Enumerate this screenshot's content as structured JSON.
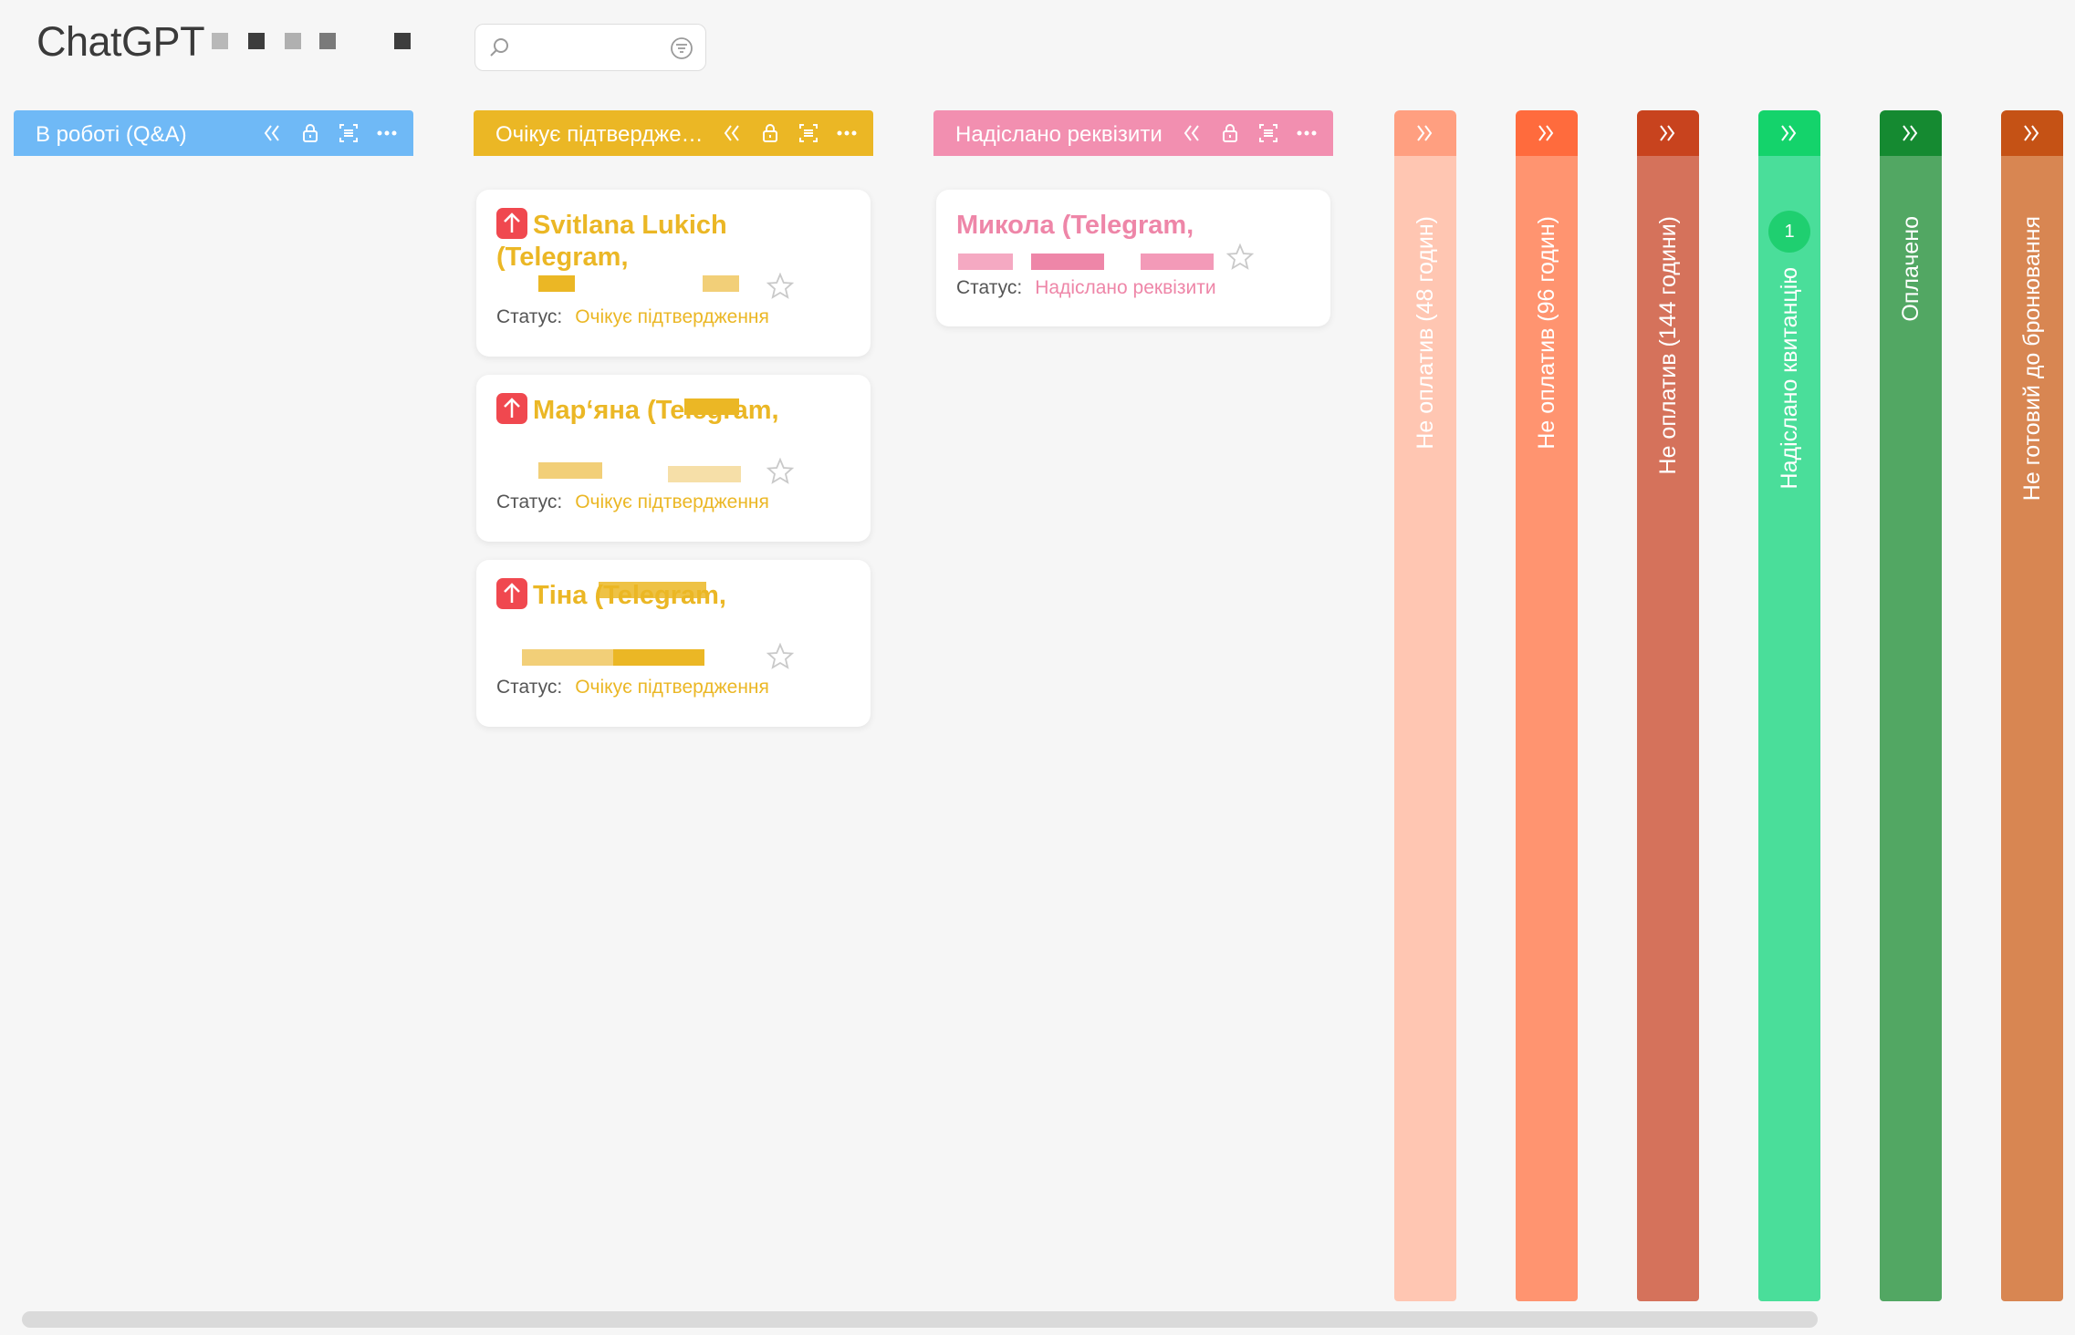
{
  "app": {
    "title": "ChatGPT"
  },
  "search": {
    "placeholder": ""
  },
  "columns": [
    {
      "label": "В роботі (Q&A)",
      "color": "#6fb9f6"
    },
    {
      "label": "Очікує підтвердження",
      "color": "#ebb725"
    },
    {
      "label": "Надіслано реквізити",
      "color": "#f28fb0"
    }
  ],
  "cards": [
    {
      "name": "Svitlana Lukich (Telegram,",
      "status_label": "Статус:",
      "status_value": "Очікує підтвердження",
      "color": "#ebb725",
      "priority": "high"
    },
    {
      "name": "Мар‘яна (Telegram,",
      "status_label": "Статус:",
      "status_value": "Очікує підтвердження",
      "color": "#ebb725",
      "priority": "high"
    },
    {
      "name": "Тіна (Telegram,",
      "status_label": "Статус:",
      "status_value": "Очікує підтвердження",
      "color": "#ebb725",
      "priority": "high"
    },
    {
      "name": "Микола (Telegram,",
      "status_label": "Статус:",
      "status_value": "Надіслано реквізити",
      "color": "#ee86a8",
      "priority": "none"
    }
  ],
  "lanes": [
    {
      "label": "Не оплатив (48 годин)",
      "head": "#ff9f80",
      "body": "#ffc6b2",
      "badge": ""
    },
    {
      "label": "Не оплатив (96 годин)",
      "head": "#ff6b3d",
      "body": "#ff9470",
      "badge": ""
    },
    {
      "label": "Не оплатив (144 години)",
      "head": "#c8431e",
      "body": "#d5725b",
      "badge": ""
    },
    {
      "label": "Надіслано квитанцію",
      "head": "#14d36b",
      "body": "#4ade9a",
      "badge": "1"
    },
    {
      "label": "Оплачено",
      "head": "#158a31",
      "body": "#52a763",
      "badge": ""
    },
    {
      "label": "Не готовий до бронювання",
      "head": "#c55215",
      "body": "#d88652",
      "badge": ""
    }
  ],
  "icons": {
    "collapse": "double-chevron-left-icon",
    "expand": "double-chevron-right-icon",
    "lock": "lock-icon",
    "scan": "scan-icon",
    "more": "more-icon",
    "star": "star-icon",
    "search": "search-icon",
    "filter": "filter-icon",
    "priority": "arrow-up-icon"
  }
}
